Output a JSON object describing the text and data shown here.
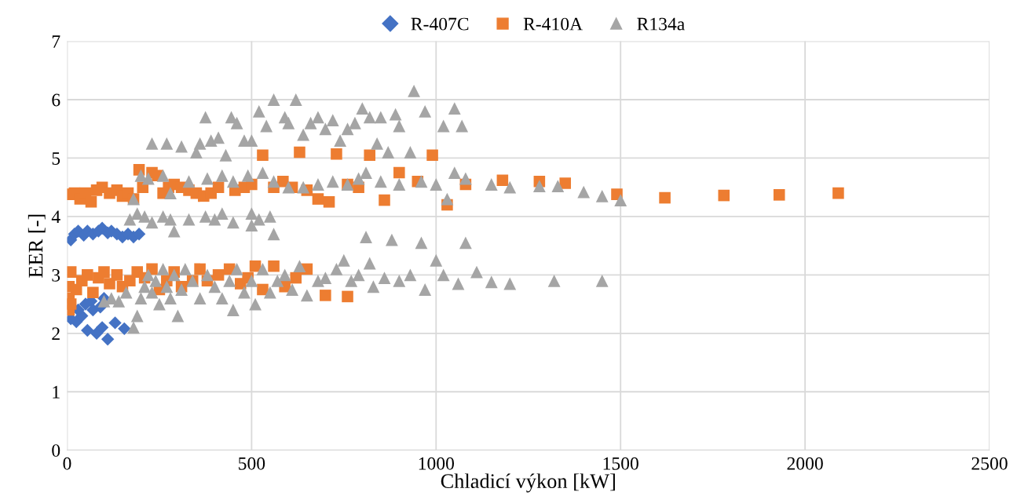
{
  "chart_data": {
    "type": "scatter",
    "xlabel": "Chladicí výkon [kW]",
    "ylabel": "EER [-]",
    "xlim": [
      0,
      2500
    ],
    "xticks": [
      0,
      500,
      1000,
      1500,
      2000,
      2500
    ],
    "ylim": [
      0,
      7
    ],
    "yticks": [
      0,
      1,
      2,
      3,
      4,
      5,
      6,
      7
    ],
    "grid": true,
    "legend": "top",
    "series": [
      {
        "name": "R-407C",
        "color": "#4472c4",
        "marker": "diamond",
        "x": [
          10,
          20,
          30,
          45,
          55,
          70,
          85,
          95,
          110,
          120,
          135,
          150,
          165,
          180,
          195,
          10,
          25,
          40,
          55,
          70,
          80,
          95,
          110,
          130,
          155,
          50,
          65,
          80,
          100,
          30,
          90
        ],
        "values": [
          3.6,
          3.7,
          3.75,
          3.68,
          3.75,
          3.7,
          3.75,
          3.8,
          3.72,
          3.75,
          3.7,
          3.65,
          3.7,
          3.65,
          3.7,
          2.25,
          2.2,
          2.3,
          2.05,
          2.4,
          2.0,
          2.1,
          1.9,
          2.18,
          2.08,
          2.5,
          2.55,
          null,
          2.6,
          2.4,
          2.45
        ]
      },
      {
        "name": "R-410A",
        "color": "#ed7d31",
        "marker": "square",
        "x": [
          5,
          20,
          35,
          50,
          65,
          80,
          95,
          115,
          135,
          150,
          165,
          180,
          195,
          205,
          215,
          230,
          245,
          260,
          275,
          290,
          310,
          330,
          350,
          370,
          390,
          410,
          430,
          455,
          480,
          500,
          530,
          560,
          585,
          610,
          630,
          650,
          680,
          710,
          730,
          760,
          790,
          820,
          860,
          900,
          950,
          990,
          1030,
          1080,
          1180,
          1280,
          1350,
          1490,
          1620,
          1780,
          1930,
          2090,
          5,
          5,
          5,
          10,
          10,
          25,
          40,
          55,
          70,
          85,
          100,
          115,
          135,
          150,
          170,
          190,
          210,
          230,
          250,
          270,
          290,
          310,
          340,
          360,
          380,
          410,
          440,
          470,
          490,
          510,
          530,
          560,
          590,
          620,
          650,
          700,
          760
        ],
        "values": [
          4.38,
          4.4,
          4.3,
          4.4,
          4.25,
          4.45,
          4.5,
          4.4,
          4.45,
          4.35,
          4.4,
          4.3,
          4.8,
          4.5,
          null,
          4.75,
          4.7,
          4.4,
          4.5,
          4.55,
          4.5,
          4.45,
          4.4,
          4.35,
          4.4,
          4.5,
          null,
          4.45,
          4.5,
          4.55,
          5.05,
          4.5,
          4.6,
          4.5,
          5.1,
          4.45,
          4.3,
          4.25,
          5.07,
          4.55,
          4.5,
          5.05,
          4.28,
          4.75,
          4.6,
          5.05,
          4.2,
          4.55,
          4.62,
          4.6,
          4.57,
          4.38,
          4.32,
          4.36,
          4.37,
          4.4,
          2.4,
          2.6,
          2.8,
          3.05,
          2.5,
          2.75,
          2.9,
          3.0,
          2.7,
          2.95,
          3.05,
          2.85,
          3.0,
          2.8,
          2.9,
          3.05,
          2.95,
          3.1,
          2.75,
          2.9,
          3.05,
          2.8,
          2.9,
          3.1,
          2.9,
          3.0,
          3.1,
          2.85,
          2.95,
          3.15,
          2.75,
          3.15,
          2.8,
          2.95,
          3.1,
          2.65,
          2.63
        ]
      },
      {
        "name": "R134a",
        "color": "#a5a5a5",
        "marker": "triangle",
        "x": [
          230,
          270,
          310,
          350,
          360,
          375,
          390,
          410,
          430,
          445,
          460,
          480,
          500,
          520,
          540,
          560,
          590,
          600,
          620,
          640,
          660,
          680,
          700,
          720,
          740,
          760,
          780,
          800,
          820,
          840,
          850,
          870,
          890,
          900,
          930,
          940,
          970,
          1020,
          1050,
          1070,
          180,
          200,
          220,
          260,
          280,
          330,
          380,
          420,
          450,
          490,
          530,
          560,
          600,
          640,
          680,
          720,
          760,
          790,
          810,
          850,
          900,
          960,
          1000,
          1030,
          1050,
          1080,
          1150,
          1200,
          1280,
          1330,
          1400,
          1450,
          1500,
          170,
          190,
          210,
          230,
          260,
          280,
          290,
          330,
          375,
          400,
          420,
          450,
          500,
          500,
          520,
          550,
          560,
          180,
          190,
          200,
          210,
          220,
          230,
          240,
          250,
          260,
          270,
          280,
          290,
          300,
          310,
          320,
          340,
          360,
          380,
          400,
          420,
          440,
          450,
          460,
          480,
          500,
          510,
          530,
          550,
          570,
          590,
          610,
          630,
          650,
          680,
          700,
          730,
          750,
          770,
          790,
          810,
          820,
          830,
          860,
          880,
          900,
          930,
          960,
          970,
          1000,
          1020,
          1060,
          1080,
          1110,
          1150,
          1200,
          1320,
          1450,
          120,
          140,
          160,
          100
        ],
        "values": [
          5.25,
          5.25,
          5.2,
          5.1,
          5.25,
          5.7,
          5.3,
          5.35,
          5.05,
          5.7,
          5.6,
          5.3,
          5.3,
          5.8,
          5.55,
          6.0,
          5.7,
          5.6,
          6.0,
          5.4,
          5.6,
          5.7,
          5.5,
          5.65,
          5.3,
          5.5,
          5.6,
          5.85,
          5.7,
          5.25,
          5.7,
          5.1,
          5.75,
          5.55,
          5.1,
          6.15,
          5.8,
          5.55,
          5.85,
          5.55,
          4.3,
          4.7,
          4.65,
          4.7,
          4.4,
          4.6,
          4.65,
          4.7,
          4.6,
          4.7,
          4.75,
          4.6,
          4.5,
          4.5,
          4.55,
          4.6,
          4.55,
          4.65,
          4.75,
          4.6,
          4.55,
          4.6,
          4.55,
          4.3,
          4.75,
          4.65,
          4.55,
          4.5,
          4.52,
          4.52,
          4.42,
          4.35,
          4.28,
          3.95,
          4.05,
          4.0,
          3.9,
          4.0,
          3.95,
          3.75,
          3.95,
          4.0,
          3.95,
          4.05,
          3.9,
          3.85,
          4.05,
          3.95,
          4.0,
          3.7,
          2.1,
          2.3,
          2.6,
          2.8,
          3.0,
          2.7,
          2.9,
          2.5,
          3.1,
          2.8,
          2.6,
          3.0,
          2.3,
          2.75,
          3.1,
          2.9,
          2.6,
          3.0,
          2.8,
          2.6,
          2.9,
          2.4,
          3.1,
          2.7,
          2.9,
          2.5,
          3.1,
          2.7,
          2.9,
          3.0,
          2.75,
          3.15,
          2.65,
          2.9,
          2.95,
          3.1,
          3.25,
          2.9,
          3.0,
          3.65,
          3.2,
          2.8,
          2.95,
          3.6,
          2.9,
          3.0,
          3.55,
          2.75,
          3.25,
          3.0,
          2.85,
          3.55,
          3.05,
          2.88,
          2.85,
          2.9,
          2.9,
          2.6,
          2.55,
          2.7,
          2.55
        ]
      }
    ]
  }
}
